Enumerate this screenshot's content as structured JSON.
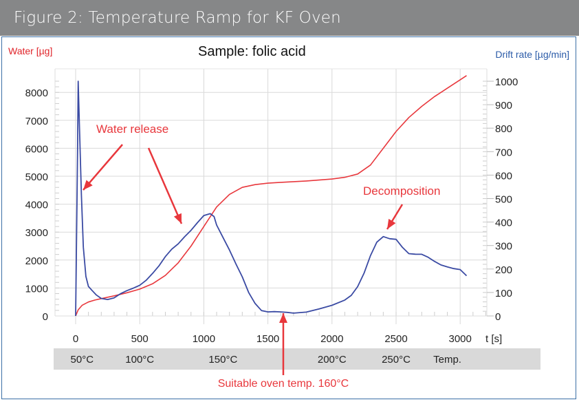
{
  "header": {
    "title": "Figure 2: Temperature Ramp for KF Oven"
  },
  "chart_data": {
    "type": "line",
    "title": "Sample:  folic acid",
    "xlabel": "t [s]",
    "ylabel_left": "Water [µg]",
    "ylabel_right": "Drift rate [µg/min]",
    "xlim": [
      0,
      3200
    ],
    "ylim_left": [
      0,
      8400
    ],
    "ylim_right": [
      0,
      1000
    ],
    "grid": true,
    "x_ticks": [
      0,
      500,
      1000,
      1500,
      2000,
      2500,
      3000
    ],
    "x_tick_labels": [
      "0",
      "500",
      "1000",
      "1500",
      "2000",
      "2500",
      "3000"
    ],
    "y_left_ticks": [
      0,
      1000,
      2000,
      3000,
      4000,
      5000,
      6000,
      7000,
      8000
    ],
    "y_left_tick_labels": [
      "0",
      "1000",
      "2000",
      "3000",
      "4000",
      "5000",
      "6000",
      "7000",
      "8000"
    ],
    "y_right_ticks": [
      0,
      100,
      200,
      300,
      400,
      500,
      600,
      700,
      800,
      900,
      1000
    ],
    "y_right_tick_labels": [
      "0",
      "100",
      "200",
      "300",
      "400",
      "500",
      "600",
      "700",
      "800",
      "900",
      "1000"
    ],
    "temperature_strip": {
      "labels": [
        {
          "text": "50°C",
          "t": 50
        },
        {
          "text": "100°C",
          "t": 500
        },
        {
          "text": "150°C",
          "t": 1150
        },
        {
          "text": "200°C",
          "t": 2000
        },
        {
          "text": "250°C",
          "t": 2500
        },
        {
          "text": "Temp.",
          "t": 2900
        }
      ]
    },
    "series": [
      {
        "name": "Water",
        "axis": "left",
        "color": "#e8373c",
        "x": [
          0,
          20,
          50,
          100,
          150,
          200,
          300,
          400,
          500,
          600,
          700,
          800,
          900,
          1000,
          1100,
          1200,
          1300,
          1400,
          1500,
          1600,
          1800,
          2000,
          2100,
          2200,
          2300,
          2400,
          2500,
          2600,
          2700,
          2800,
          2900,
          3000,
          3050
        ],
        "values": [
          0,
          220,
          380,
          500,
          570,
          620,
          720,
          830,
          960,
          1150,
          1450,
          1900,
          2500,
          3200,
          3900,
          4350,
          4600,
          4700,
          4750,
          4780,
          4830,
          4900,
          4960,
          5080,
          5400,
          6000,
          6600,
          7100,
          7500,
          7850,
          8150,
          8450,
          8600
        ]
      },
      {
        "name": "Drift rate",
        "axis": "right",
        "color": "#3a4aa3",
        "x": [
          0,
          15,
          20,
          30,
          45,
          60,
          80,
          100,
          130,
          160,
          200,
          250,
          300,
          350,
          400,
          450,
          500,
          550,
          600,
          650,
          700,
          750,
          800,
          850,
          900,
          950,
          1000,
          1050,
          1080,
          1100,
          1150,
          1200,
          1250,
          1300,
          1350,
          1400,
          1450,
          1500,
          1550,
          1600,
          1650,
          1700,
          1800,
          1900,
          2000,
          2100,
          2150,
          2200,
          2250,
          2300,
          2350,
          2400,
          2450,
          2500,
          2550,
          2600,
          2650,
          2700,
          2750,
          2800,
          2850,
          2900,
          2950,
          3000,
          3050
        ],
        "values": [
          0,
          700,
          1000,
          800,
          520,
          300,
          170,
          120,
          100,
          88,
          80,
          78,
          80,
          90,
          100,
          115,
          135,
          160,
          185,
          210,
          245,
          280,
          310,
          345,
          370,
          395,
          420,
          430,
          425,
          395,
          340,
          280,
          215,
          160,
          100,
          60,
          30,
          18,
          12,
          10,
          14,
          18,
          24,
          32,
          40,
          60,
          85,
          130,
          190,
          260,
          310,
          330,
          325,
          330,
          300,
          270,
          260,
          255,
          245,
          235,
          225,
          215,
          200,
          190,
          165
        ]
      }
    ],
    "annotations": [
      {
        "text": "Water release",
        "color": "#e8373c"
      },
      {
        "text": "Decomposition",
        "color": "#e8373c"
      },
      {
        "text": "Suitable oven temp. 160°C",
        "color": "#e8373c",
        "t": 1620
      }
    ]
  }
}
